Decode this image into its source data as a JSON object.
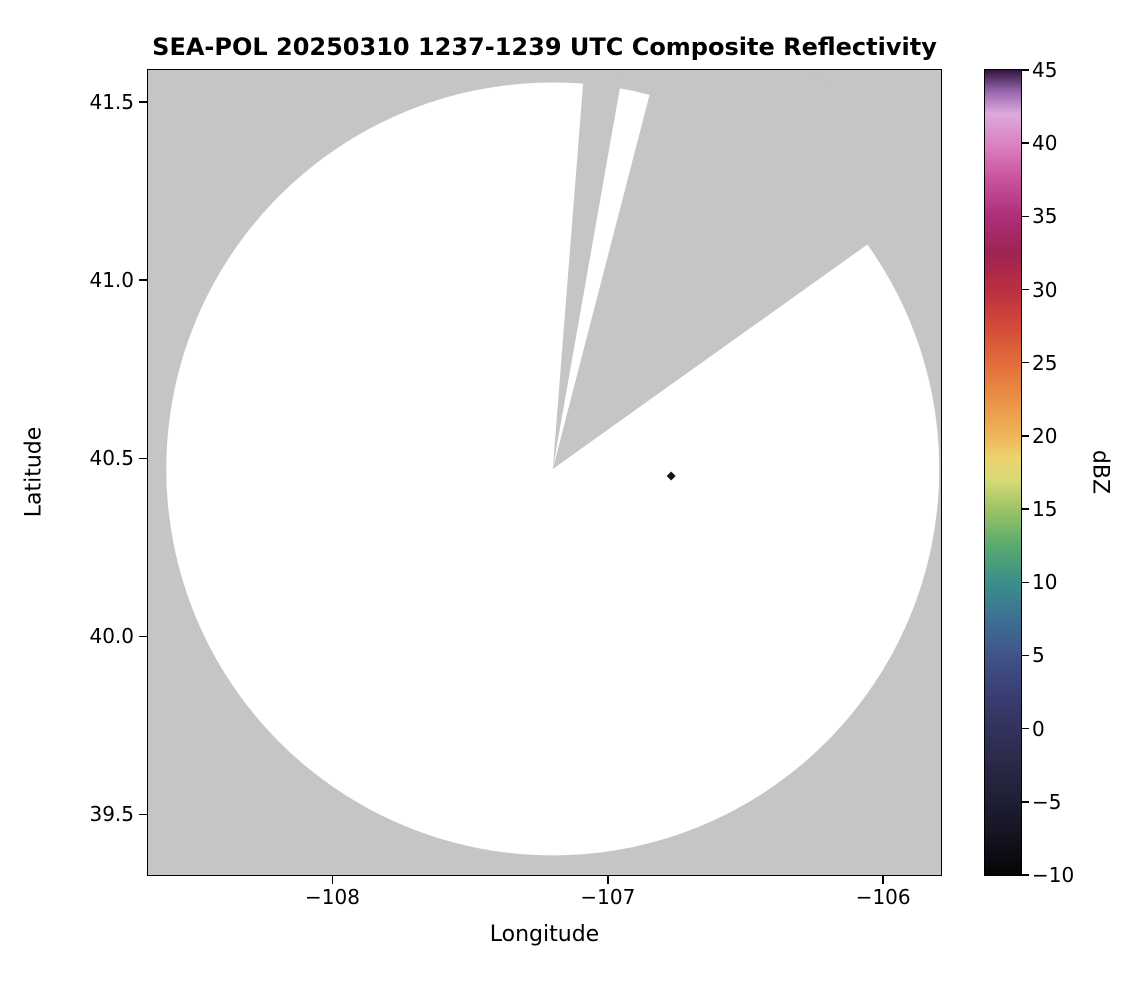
{
  "chart_data": {
    "type": "heatmap",
    "title": "SEA-POL 20250310 1237-1239 UTC Composite Reflectivity",
    "xlabel": "Longitude",
    "ylabel": "Latitude",
    "xlim": [
      -108.67,
      -105.79
    ],
    "ylim": [
      39.33,
      41.59
    ],
    "grid": false,
    "legend": "colorbar-right",
    "x_ticks": [
      {
        "value": -108,
        "label": "−108"
      },
      {
        "value": -107,
        "label": "−107"
      },
      {
        "value": -106,
        "label": "−106"
      }
    ],
    "y_ticks": [
      {
        "value": 39.5,
        "label": "39.5"
      },
      {
        "value": 40.0,
        "label": "40.0"
      },
      {
        "value": 40.5,
        "label": "40.5"
      },
      {
        "value": 41.0,
        "label": "41.0"
      },
      {
        "value": 41.5,
        "label": "41.5"
      }
    ],
    "colors": {
      "no_data_background": "#c5c5c5",
      "coverage_fill": "#ffffff",
      "frame": "#000000"
    },
    "radar_coverage": {
      "center_lon": -107.2,
      "center_lat": 40.47,
      "radius_deg_lat": 1.085
    },
    "blocked_sectors_deg_from_north": [
      {
        "start": 4.5,
        "end": 10.0
      },
      {
        "start": 14.5,
        "end": 54.5
      }
    ],
    "echo_marker": {
      "lon": -106.77,
      "lat": 40.45,
      "shape": "diamond",
      "color": "#1b1026"
    },
    "colorbar": {
      "label": "dBZ",
      "min": -10,
      "max": 45,
      "ticks": [
        {
          "value": 45,
          "label": "45"
        },
        {
          "value": 40,
          "label": "40"
        },
        {
          "value": 35,
          "label": "35"
        },
        {
          "value": 30,
          "label": "30"
        },
        {
          "value": 25,
          "label": "25"
        },
        {
          "value": 20,
          "label": "20"
        },
        {
          "value": 15,
          "label": "15"
        },
        {
          "value": 10,
          "label": "10"
        },
        {
          "value": 5,
          "label": "5"
        },
        {
          "value": 0,
          "label": "0"
        },
        {
          "value": -5,
          "label": "−5"
        },
        {
          "value": -10,
          "label": "−10"
        }
      ],
      "stops": [
        {
          "value": -10,
          "color": "#050505"
        },
        {
          "value": -7.5,
          "color": "#131320"
        },
        {
          "value": -5,
          "color": "#1e1e33"
        },
        {
          "value": -2.5,
          "color": "#292947"
        },
        {
          "value": 0,
          "color": "#32325c"
        },
        {
          "value": 2.5,
          "color": "#3a3f74"
        },
        {
          "value": 5,
          "color": "#3f5489"
        },
        {
          "value": 7.5,
          "color": "#3e7093"
        },
        {
          "value": 10,
          "color": "#3b8f8a"
        },
        {
          "value": 12.5,
          "color": "#58aa6e"
        },
        {
          "value": 15,
          "color": "#9dc465"
        },
        {
          "value": 17,
          "color": "#d8da79"
        },
        {
          "value": 18.5,
          "color": "#ecd36e"
        },
        {
          "value": 20,
          "color": "#efb557"
        },
        {
          "value": 22.5,
          "color": "#ea9145"
        },
        {
          "value": 25,
          "color": "#e26c3b"
        },
        {
          "value": 27.5,
          "color": "#d34a38"
        },
        {
          "value": 30,
          "color": "#bb2e41"
        },
        {
          "value": 32.5,
          "color": "#9f2353"
        },
        {
          "value": 35,
          "color": "#ae2f78"
        },
        {
          "value": 37.5,
          "color": "#c9519e"
        },
        {
          "value": 40,
          "color": "#dc83c2"
        },
        {
          "value": 42,
          "color": "#dcaada"
        },
        {
          "value": 43.5,
          "color": "#9a68b0"
        },
        {
          "value": 45,
          "color": "#33153f"
        }
      ]
    }
  }
}
